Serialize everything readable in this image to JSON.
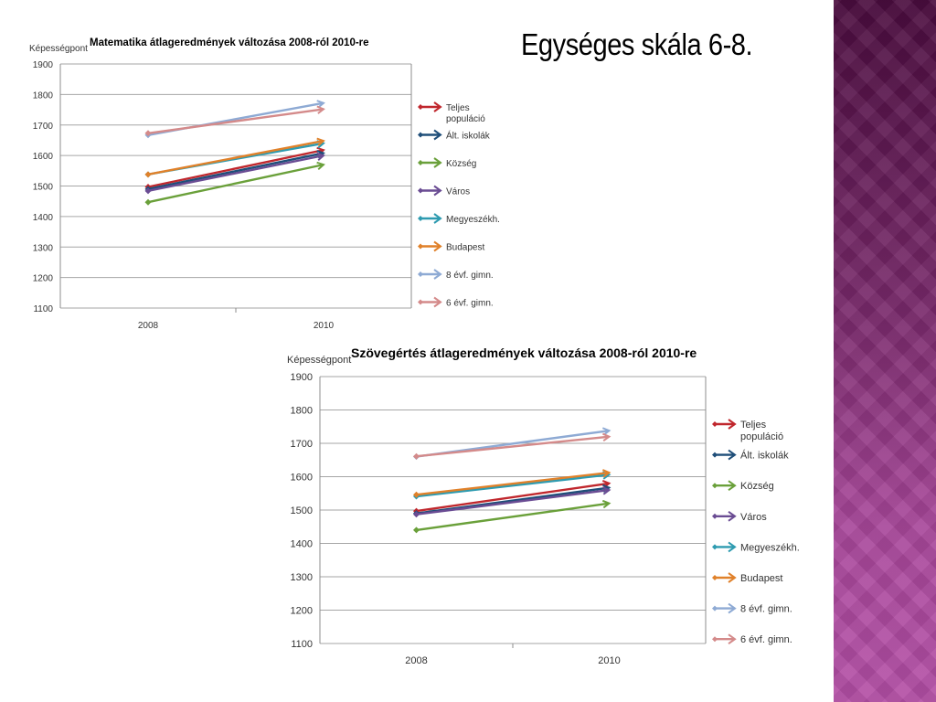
{
  "slide": {
    "title": "Egységes skála 6-8."
  },
  "chart_data": [
    {
      "type": "line",
      "title": "Matematika átlageredmények változása 2008-ról 2010-re",
      "ylabel": "Képességpont",
      "xlabel": "",
      "categories": [
        "2008",
        "2010"
      ],
      "ylim": [
        1100,
        1900
      ],
      "yticks": [
        1100,
        1200,
        1300,
        1400,
        1500,
        1600,
        1700,
        1800,
        1900
      ],
      "grid": true,
      "legend_position": "right",
      "series": [
        {
          "name": "Teljes populáció",
          "color": "#c0272d",
          "values": [
            1497,
            1618
          ]
        },
        {
          "name": "Ált. iskolák",
          "color": "#1f4e79",
          "values": [
            1490,
            1608
          ]
        },
        {
          "name": "Község",
          "color": "#6aa03a",
          "values": [
            1447,
            1570
          ]
        },
        {
          "name": "Város",
          "color": "#6a4c93",
          "values": [
            1484,
            1600
          ]
        },
        {
          "name": "Megyeszékh.",
          "color": "#2e9bb0",
          "values": [
            1538,
            1640
          ]
        },
        {
          "name": "Budapest",
          "color": "#e0812a",
          "values": [
            1538,
            1648
          ]
        },
        {
          "name": "8 évf. gimn.",
          "color": "#8eaad4",
          "values": [
            1667,
            1772
          ]
        },
        {
          "name": "6 évf. gimn.",
          "color": "#d48a8a",
          "values": [
            1673,
            1752
          ]
        }
      ]
    },
    {
      "type": "line",
      "title": "Szövegértés átlageredmények változása 2008-ról 2010-re",
      "ylabel": "Képességpont",
      "xlabel": "",
      "categories": [
        "2008",
        "2010"
      ],
      "ylim": [
        1100,
        1900
      ],
      "yticks": [
        1100,
        1200,
        1300,
        1400,
        1500,
        1600,
        1700,
        1800,
        1900
      ],
      "grid": true,
      "legend_position": "right",
      "series": [
        {
          "name": "Teljes populáció",
          "color": "#c0272d",
          "values": [
            1497,
            1580
          ]
        },
        {
          "name": "Ált. iskolák",
          "color": "#1f4e79",
          "values": [
            1490,
            1567
          ]
        },
        {
          "name": "Község",
          "color": "#6aa03a",
          "values": [
            1440,
            1520
          ]
        },
        {
          "name": "Város",
          "color": "#6a4c93",
          "values": [
            1487,
            1560
          ]
        },
        {
          "name": "Megyeszékh.",
          "color": "#2e9bb0",
          "values": [
            1541,
            1606
          ]
        },
        {
          "name": "Budapest",
          "color": "#e0812a",
          "values": [
            1546,
            1612
          ]
        },
        {
          "name": "8 évf. gimn.",
          "color": "#8eaad4",
          "values": [
            1660,
            1738
          ]
        },
        {
          "name": "6 évf. gimn.",
          "color": "#d48a8a",
          "values": [
            1661,
            1720
          ]
        }
      ]
    }
  ]
}
